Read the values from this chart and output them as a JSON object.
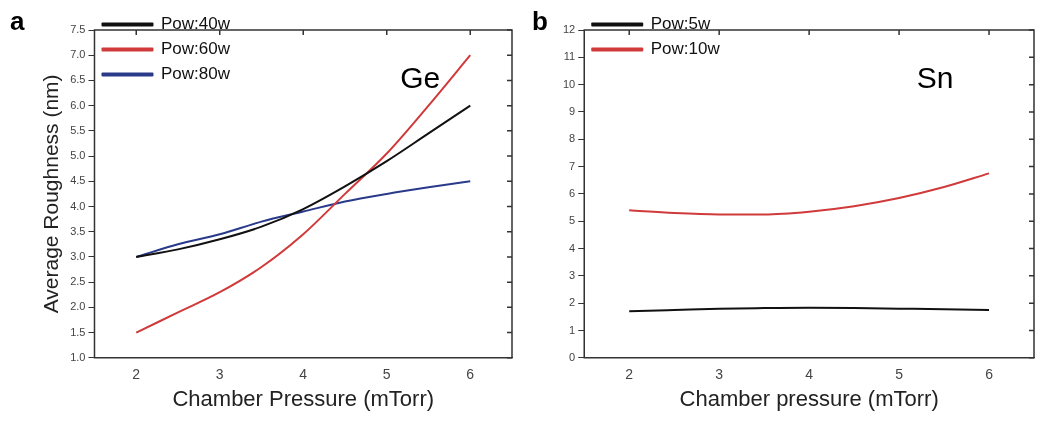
{
  "chart_data": [
    {
      "type": "line",
      "xlabel": "Chamber Pressure (mTorr)",
      "ylabel": "Average Roughness (nm)",
      "annotations": [
        "a",
        "Ge"
      ],
      "x": [
        2,
        2.5,
        3,
        3.5,
        4,
        4.5,
        5,
        5.5,
        6
      ],
      "series": [
        {
          "name": "Pow:40w",
          "color": "#111111",
          "values": [
            3.0,
            3.15,
            3.35,
            3.6,
            3.95,
            4.4,
            4.9,
            5.45,
            6.0
          ]
        },
        {
          "name": "Pow:60w",
          "color": "#d03a3a",
          "values": [
            1.5,
            1.9,
            2.3,
            2.8,
            3.45,
            4.25,
            5.05,
            6.0,
            7.0
          ]
        },
        {
          "name": "Pow:80w",
          "color": "#2a3a8a",
          "values": [
            3.0,
            3.25,
            3.45,
            3.7,
            3.9,
            4.1,
            4.25,
            4.38,
            4.5
          ]
        }
      ],
      "xlim": [
        1.5,
        6.5
      ],
      "xticks": [
        2,
        3,
        4,
        5,
        6
      ],
      "ylim": [
        1,
        7.5
      ],
      "yticks": [
        {
          "value": 1,
          "label": "1.0"
        },
        1.5,
        {
          "value": 2,
          "label": "2.0"
        },
        2.5,
        {
          "value": 3,
          "label": "3.0"
        },
        3.5,
        {
          "value": 4,
          "label": "4.0"
        },
        4.5,
        {
          "value": 5,
          "label": "5.0"
        },
        5.5,
        {
          "value": 6,
          "label": "6.0"
        },
        6.5,
        {
          "value": 7,
          "label": "7.0"
        },
        7.5
      ],
      "legend": "top left",
      "grid": false,
      "marker": "none",
      "line_style": "solid"
    },
    {
      "type": "line",
      "xlabel": "Chamber pressure (mTorr)",
      "annotations": [
        "b",
        "Sn"
      ],
      "x": [
        2,
        2.5,
        3,
        3.5,
        4,
        4.5,
        5,
        5.5,
        6
      ],
      "series": [
        {
          "name": "Pow:5w",
          "color": "#111111",
          "values": [
            1.7,
            1.75,
            1.8,
            1.82,
            1.83,
            1.82,
            1.8,
            1.78,
            1.75
          ]
        },
        {
          "name": "Pow:10w",
          "color": "#d03a3a",
          "values": [
            5.4,
            5.3,
            5.25,
            5.25,
            5.35,
            5.55,
            5.85,
            6.25,
            6.75
          ]
        }
      ],
      "xlim": [
        1.5,
        6.5
      ],
      "xticks": [
        2,
        3,
        4,
        5,
        6
      ],
      "ylim": [
        0,
        12
      ],
      "yticks": [
        0,
        1,
        2,
        3,
        4,
        5,
        6,
        7,
        8,
        9,
        10,
        11,
        12
      ],
      "legend": "top left",
      "grid": false,
      "marker": "none",
      "line_style": "solid"
    }
  ]
}
